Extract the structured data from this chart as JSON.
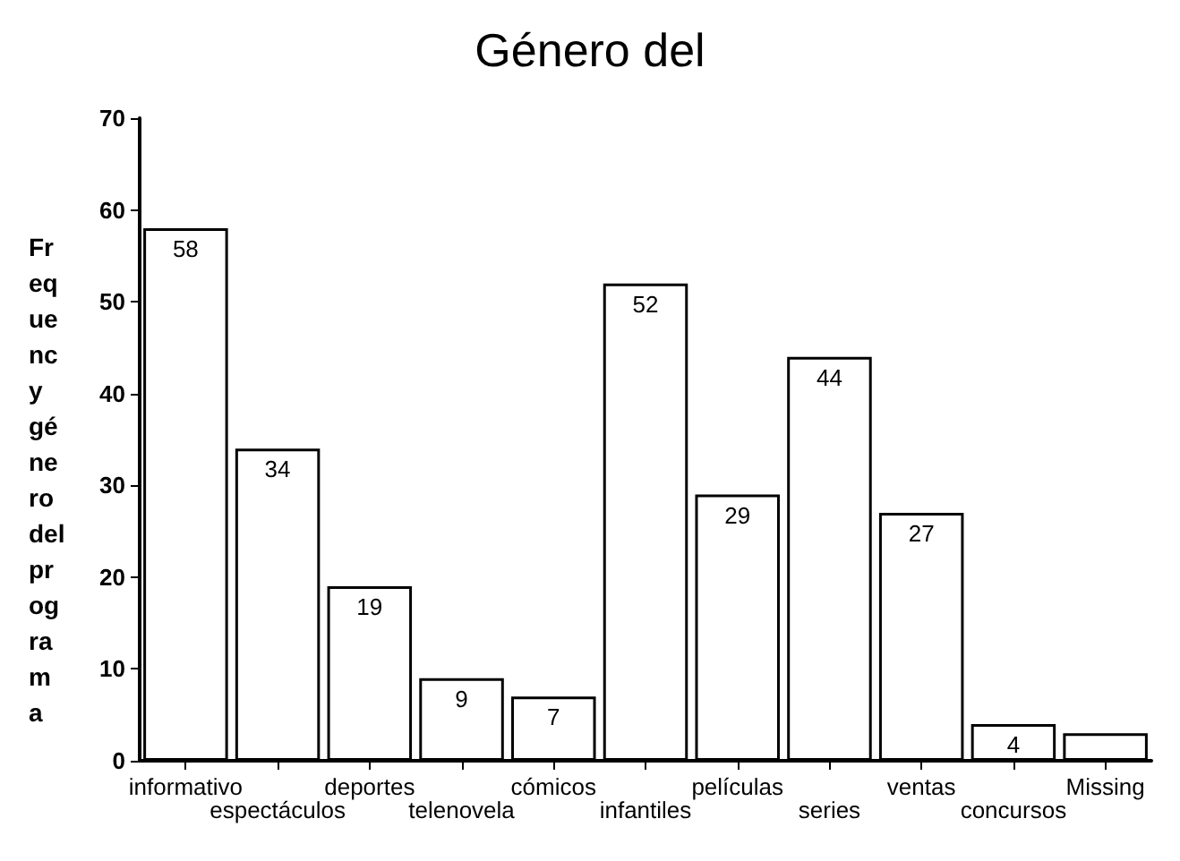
{
  "chart_data": {
    "type": "bar",
    "title": "Género del",
    "ylabel": "Fr\neq\nue\nnc\ny\ngé\nne\nro\ndel\npr\nog\nra\nm\na",
    "categories": [
      "informativo",
      "espectáculos",
      "deportes",
      "telenovela",
      "cómicos",
      "infantiles",
      "películas",
      "series",
      "ventas",
      "concursos",
      "Missing"
    ],
    "values": [
      58,
      34,
      19,
      9,
      7,
      52,
      29,
      44,
      27,
      4,
      3
    ],
    "value_labels": [
      "58",
      "34",
      "19",
      "9",
      "7",
      "52",
      "29",
      "44",
      "27",
      "4",
      null
    ],
    "color": "#ffffff",
    "ylim": [
      0,
      70
    ],
    "yticks": [
      0,
      10,
      20,
      30,
      40,
      50,
      60,
      70
    ],
    "grid": false
  }
}
